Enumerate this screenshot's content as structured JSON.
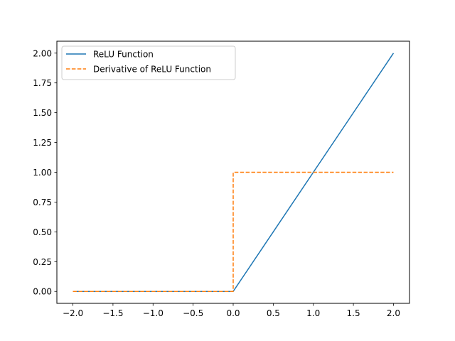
{
  "chart_data": {
    "type": "line",
    "title": "",
    "xlabel": "",
    "ylabel": "",
    "xlim": [
      -2.2,
      2.2
    ],
    "ylim": [
      -0.1,
      2.1
    ],
    "x_ticks": [
      -2.0,
      -1.5,
      -1.0,
      -0.5,
      0.0,
      0.5,
      1.0,
      1.5,
      2.0
    ],
    "x_tick_labels": [
      "−2.0",
      "−1.5",
      "−1.0",
      "−0.5",
      "0.0",
      "0.5",
      "1.0",
      "1.5",
      "2.0"
    ],
    "y_ticks": [
      0.0,
      0.25,
      0.5,
      0.75,
      1.0,
      1.25,
      1.5,
      1.75,
      2.0
    ],
    "y_tick_labels": [
      "0.00",
      "0.25",
      "0.50",
      "0.75",
      "1.00",
      "1.25",
      "1.50",
      "1.75",
      "2.00"
    ],
    "grid": false,
    "legend_position": "upper-left",
    "series": [
      {
        "name": "ReLU Function",
        "color": "#1f77b4",
        "style": "solid",
        "x": [
          -2.0,
          0.0,
          2.0
        ],
        "y": [
          0.0,
          0.0,
          2.0
        ]
      },
      {
        "name": "Derivative of ReLU Function",
        "color": "#ff7f0e",
        "style": "dashed",
        "x": [
          -2.0,
          0.0,
          0.0,
          2.0
        ],
        "y": [
          0.0,
          0.0,
          1.0,
          1.0
        ]
      }
    ]
  }
}
